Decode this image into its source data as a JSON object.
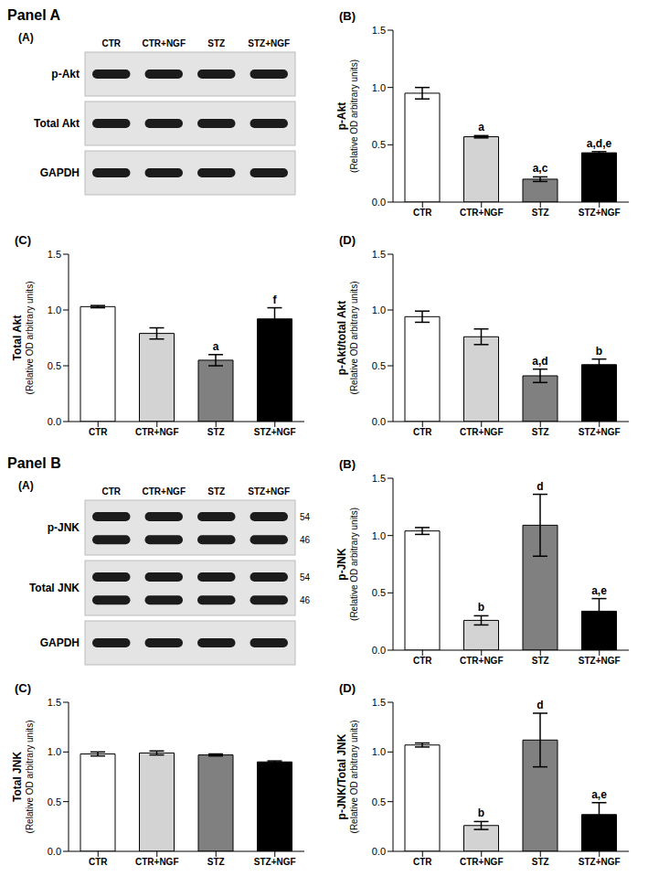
{
  "chart_data": [
    {
      "type": "bar",
      "title": "(B)",
      "y_label": "p-Akt",
      "y_sublabel": "(Relative OD arbitrary units)",
      "categories": [
        "CTR",
        "CTR+NGF",
        "STZ",
        "STZ+NGF"
      ],
      "values": [
        0.95,
        0.57,
        0.2,
        0.43
      ],
      "errors": [
        0.05,
        0.01,
        0.02,
        0.01
      ],
      "annotations": [
        null,
        "a",
        "a,c",
        "a,d,e"
      ],
      "colors": [
        "#ffffff",
        "#d3d3d3",
        "#808080",
        "#000000"
      ],
      "ylim": [
        0,
        1.5
      ],
      "yticks": [
        {
          "value": 0,
          "label": "0.0"
        },
        {
          "value": 0.5,
          "label": "0.5"
        },
        {
          "value": 1,
          "label": "1.0"
        },
        {
          "value": 1.5,
          "label": "1.5"
        }
      ],
      "grid": false
    },
    {
      "type": "bar",
      "title": "(C)",
      "y_label": "Total Akt",
      "y_sublabel": "(Relative OD arbitrary units)",
      "categories": [
        "CTR",
        "CTR+NGF",
        "STZ",
        "STZ+NGF"
      ],
      "values": [
        1.03,
        0.79,
        0.55,
        0.92
      ],
      "errors": [
        0.01,
        0.05,
        0.05,
        0.1
      ],
      "annotations": [
        null,
        null,
        "a",
        "f"
      ],
      "colors": [
        "#ffffff",
        "#d3d3d3",
        "#808080",
        "#000000"
      ],
      "ylim": [
        0,
        1.5
      ],
      "yticks": [
        {
          "value": 0,
          "label": "0.0"
        },
        {
          "value": 0.5,
          "label": "0.5"
        },
        {
          "value": 1,
          "label": "1.0"
        },
        {
          "value": 1.5,
          "label": "1.5"
        }
      ],
      "grid": false
    },
    {
      "type": "bar",
      "title": "(D)",
      "y_label": "p-Akt/total Akt",
      "y_sublabel": "(Relative OD arbitrary units)",
      "categories": [
        "CTR",
        "CTR+NGF",
        "STZ",
        "STZ+NGF"
      ],
      "values": [
        0.94,
        0.76,
        0.41,
        0.51
      ],
      "errors": [
        0.05,
        0.07,
        0.06,
        0.05
      ],
      "annotations": [
        null,
        null,
        "a,d",
        "b"
      ],
      "colors": [
        "#ffffff",
        "#d3d3d3",
        "#808080",
        "#000000"
      ],
      "ylim": [
        0,
        1.5
      ],
      "yticks": [
        {
          "value": 0,
          "label": "0.0"
        },
        {
          "value": 0.5,
          "label": "0.5"
        },
        {
          "value": 1,
          "label": "1.0"
        },
        {
          "value": 1.5,
          "label": "1.5"
        }
      ],
      "grid": false
    },
    {
      "type": "bar",
      "title": "(B)",
      "y_label": "p-JNK",
      "y_sublabel": "(Relative OD arbitrary units)",
      "categories": [
        "CTR",
        "CTR+NGF",
        "STZ",
        "STZ+NGF"
      ],
      "values": [
        1.04,
        0.26,
        1.09,
        0.34
      ],
      "errors": [
        0.03,
        0.04,
        0.27,
        0.11
      ],
      "annotations": [
        null,
        "b",
        "d",
        "a,e"
      ],
      "colors": [
        "#ffffff",
        "#d3d3d3",
        "#808080",
        "#000000"
      ],
      "ylim": [
        0,
        1.5
      ],
      "yticks": [
        {
          "value": 0,
          "label": "0.0"
        },
        {
          "value": 0.5,
          "label": "0.5"
        },
        {
          "value": 1,
          "label": "1.0"
        },
        {
          "value": 1.5,
          "label": "1.5"
        }
      ],
      "grid": false
    },
    {
      "type": "bar",
      "title": "(C)",
      "y_label": "Total JNK",
      "y_sublabel": "(Relative OD arbitrary units)",
      "categories": [
        "CTR",
        "CTR+NGF",
        "STZ",
        "STZ+NGF"
      ],
      "values": [
        0.98,
        0.99,
        0.97,
        0.9
      ],
      "errors": [
        0.02,
        0.02,
        0.01,
        0.01
      ],
      "annotations": [
        null,
        null,
        null,
        null
      ],
      "colors": [
        "#ffffff",
        "#d3d3d3",
        "#808080",
        "#000000"
      ],
      "ylim": [
        0,
        1.5
      ],
      "yticks": [
        {
          "value": 0,
          "label": "0.0"
        },
        {
          "value": 0.5,
          "label": "0.5"
        },
        {
          "value": 1,
          "label": "1.0"
        },
        {
          "value": 1.5,
          "label": "1.5"
        }
      ],
      "grid": false
    },
    {
      "type": "bar",
      "title": "(D)",
      "y_label": "p-JNK/Total JNK",
      "y_sublabel": "(Relative OD arbitrary units)",
      "categories": [
        "CTR",
        "CTR+NGF",
        "STZ",
        "STZ+NGF"
      ],
      "values": [
        1.07,
        0.26,
        1.12,
        0.37
      ],
      "errors": [
        0.02,
        0.04,
        0.27,
        0.12
      ],
      "annotations": [
        null,
        "b",
        "d",
        "a,e"
      ],
      "colors": [
        "#ffffff",
        "#d3d3d3",
        "#808080",
        "#000000"
      ],
      "ylim": [
        0,
        1.5
      ],
      "yticks": [
        {
          "value": 0,
          "label": "0.0"
        },
        {
          "value": 0.5,
          "label": "0.5"
        },
        {
          "value": 1,
          "label": "1.0"
        },
        {
          "value": 1.5,
          "label": "1.5"
        }
      ],
      "grid": false
    }
  ],
  "document": {
    "panels": [
      {
        "label": "Panel A",
        "blot": {
          "title": "(A)",
          "lanes": [
            "CTR",
            "CTR+NGF",
            "STZ",
            "STZ+NGF"
          ],
          "rows": [
            {
              "name": "p-Akt",
              "markers": []
            },
            {
              "name": "Total Akt",
              "markers": []
            },
            {
              "name": "GAPDH",
              "markers": []
            }
          ]
        }
      },
      {
        "label": "Panel B",
        "blot": {
          "title": "(A)",
          "lanes": [
            "CTR",
            "CTR+NGF",
            "STZ",
            "STZ+NGF"
          ],
          "rows": [
            {
              "name": "p-JNK",
              "markers": [
                54,
                46
              ]
            },
            {
              "name": "Total JNK",
              "markers": [
                54,
                46
              ]
            },
            {
              "name": "GAPDH",
              "markers": []
            }
          ]
        }
      }
    ]
  }
}
